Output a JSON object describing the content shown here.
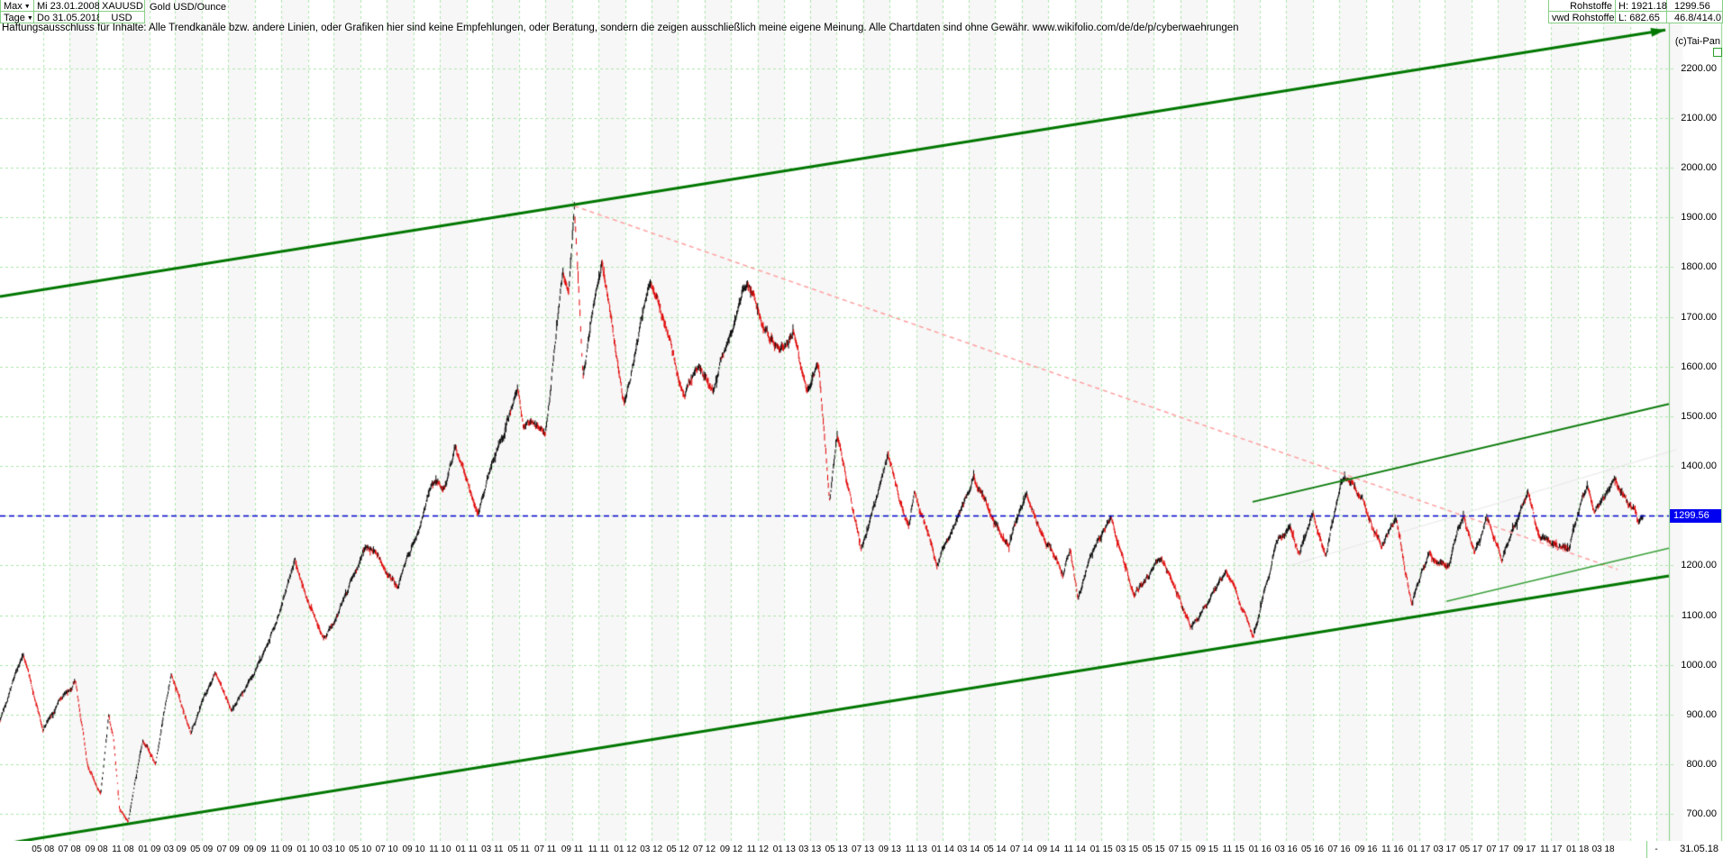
{
  "header": {
    "range_selector_label": "Max",
    "period_selector_label": "Tage",
    "start_date": "Mi 23.01.2008",
    "end_date": "Do 31.05.2018",
    "symbol": "XAUUSD",
    "currency": "USD",
    "instrument_name": "Gold USD/Ounce",
    "category": "Rohstoffe",
    "provider": "vwd Rohstoffe",
    "high_label": "H: 1921.18",
    "low_label": "L: 682.65",
    "last_price": "1299.56",
    "stats": "46.8/414.0",
    "copyright": "(c)Tai-Pan"
  },
  "disclaimer": "Haftungsausschluss für Inhalte: Alle Trendkanäle bzw. andere Linien, oder Grafiken hier sind keine Empfehlungen, oder Beratung, sondern die zeigen ausschließlich meine eigene Meinung. Alle Chartdaten sind ohne Gewähr.  www.wikifolio.com/de/de/p/cyberwaehrungen",
  "current_price": "1299.56",
  "axes": {
    "price_ticks": [
      700,
      800,
      900,
      1000,
      1100,
      1200,
      1300,
      1400,
      1500,
      1600,
      1700,
      1800,
      1900,
      2000,
      2100,
      2200
    ],
    "price_labels_hidden": [
      1300
    ],
    "date_labels": [
      "05 08",
      "07 08",
      "09 08",
      "11 08",
      "01 09",
      "03 09",
      "05 09",
      "07 09",
      "09 09",
      "11 09",
      "01 10",
      "03 10",
      "05 10",
      "07 10",
      "09 10",
      "11 10",
      "01 11",
      "03 11",
      "05 11",
      "07 11",
      "09 11",
      "11 11",
      "01 12",
      "03 12",
      "05 12",
      "07 12",
      "09 12",
      "11 12",
      "01 13",
      "03 13",
      "05 13",
      "07 13",
      "09 13",
      "11 13",
      "01 14",
      "03 14",
      "05 14",
      "07 14",
      "09 14",
      "11 14",
      "01 15",
      "03 15",
      "05 15",
      "07 15",
      "09 15",
      "11 15",
      "01 16",
      "03 16",
      "05 16",
      "07 16",
      "09 16",
      "11 16",
      "01 17",
      "03 17",
      "05 17",
      "07 17",
      "09 17",
      "11 17",
      "01 18",
      "03 18"
    ],
    "end_dash": "-",
    "end_date_label": "31.05.18"
  },
  "chart_data": {
    "type": "candlestick",
    "symbol": "XAUUSD",
    "title": "Gold USD/Ounce",
    "x_range": [
      "2008-01-23",
      "2018-05-31"
    ],
    "y_range": [
      700,
      2200
    ],
    "grid": true,
    "high": 1921.18,
    "low": 682.65,
    "last": 1299.56,
    "colors": {
      "up": "#000000",
      "down": "#e00000",
      "grid": "#ade6ad",
      "band": "#f7f7f7",
      "border": "#86cf86",
      "channel": "#007700",
      "trend": "#0e7d0e",
      "minor_trend": "#39a039",
      "decline": "#ff9f9f",
      "current": "#0000cc",
      "faint": "#e8e8e8",
      "tag_bg": "#0000f0"
    },
    "series": [
      {
        "name": "XAUUSD Gold USD/Ounce",
        "anchors": [
          [
            "2008-01-23",
            890
          ],
          [
            "2008-03-17",
            1028
          ],
          [
            "2008-05-01",
            875
          ],
          [
            "2008-07-15",
            978
          ],
          [
            "2008-08-11",
            818
          ],
          [
            "2008-09-11",
            745
          ],
          [
            "2008-09-29",
            900
          ],
          [
            "2008-10-10",
            850
          ],
          [
            "2008-10-24",
            712
          ],
          [
            "2008-11-13",
            684
          ],
          [
            "2008-12-17",
            855
          ],
          [
            "2009-01-15",
            808
          ],
          [
            "2009-02-20",
            992
          ],
          [
            "2009-04-06",
            872
          ],
          [
            "2009-06-01",
            982
          ],
          [
            "2009-07-08",
            910
          ],
          [
            "2009-09-16",
            1018
          ],
          [
            "2009-10-13",
            1062
          ],
          [
            "2009-12-02",
            1215
          ],
          [
            "2010-02-05",
            1052
          ],
          [
            "2010-03-12",
            1108
          ],
          [
            "2010-05-13",
            1240
          ],
          [
            "2010-07-27",
            1158
          ],
          [
            "2010-10-13",
            1372
          ],
          [
            "2010-11-12",
            1358
          ],
          [
            "2010-12-06",
            1425
          ],
          [
            "2011-01-27",
            1310
          ],
          [
            "2011-04-29",
            1565
          ],
          [
            "2011-05-12",
            1490
          ],
          [
            "2011-07-01",
            1480
          ],
          [
            "2011-08-10",
            1800
          ],
          [
            "2011-08-24",
            1750
          ],
          [
            "2011-09-06",
            1920
          ],
          [
            "2011-09-26",
            1590
          ],
          [
            "2011-11-08",
            1795
          ],
          [
            "2011-12-29",
            1525
          ],
          [
            "2012-02-28",
            1785
          ],
          [
            "2012-05-16",
            1530
          ],
          [
            "2012-06-20",
            1615
          ],
          [
            "2012-07-24",
            1570
          ],
          [
            "2012-10-04",
            1790
          ],
          [
            "2012-12-20",
            1645
          ],
          [
            "2013-01-23",
            1680
          ],
          [
            "2013-02-21",
            1562
          ],
          [
            "2013-03-21",
            1612
          ],
          [
            "2013-04-16",
            1348
          ],
          [
            "2013-05-03",
            1468
          ],
          [
            "2013-06-27",
            1228
          ],
          [
            "2013-08-27",
            1418
          ],
          [
            "2013-10-15",
            1272
          ],
          [
            "2013-10-28",
            1348
          ],
          [
            "2013-12-19",
            1190
          ],
          [
            "2014-03-14",
            1382
          ],
          [
            "2014-06-02",
            1242
          ],
          [
            "2014-07-10",
            1338
          ],
          [
            "2014-10-06",
            1188
          ],
          [
            "2014-10-21",
            1248
          ],
          [
            "2014-11-07",
            1142
          ],
          [
            "2014-12-09",
            1230
          ],
          [
            "2015-01-22",
            1300
          ],
          [
            "2015-03-17",
            1148
          ],
          [
            "2015-05-18",
            1224
          ],
          [
            "2015-07-24",
            1078
          ],
          [
            "2015-10-14",
            1184
          ],
          [
            "2015-12-17",
            1048
          ],
          [
            "2016-02-11",
            1242
          ],
          [
            "2016-03-10",
            1272
          ],
          [
            "2016-04-01",
            1215
          ],
          [
            "2016-05-02",
            1296
          ],
          [
            "2016-05-31",
            1208
          ],
          [
            "2016-07-06",
            1372
          ],
          [
            "2016-08-02",
            1358
          ],
          [
            "2016-10-07",
            1252
          ],
          [
            "2016-11-09",
            1308
          ],
          [
            "2016-12-15",
            1126
          ],
          [
            "2017-01-24",
            1214
          ],
          [
            "2017-03-10",
            1198
          ],
          [
            "2017-04-13",
            1288
          ],
          [
            "2017-05-09",
            1216
          ],
          [
            "2017-06-06",
            1294
          ],
          [
            "2017-07-10",
            1210
          ],
          [
            "2017-09-08",
            1350
          ],
          [
            "2017-10-06",
            1268
          ],
          [
            "2017-12-12",
            1238
          ],
          [
            "2018-01-25",
            1360
          ],
          [
            "2018-02-08",
            1308
          ],
          [
            "2018-03-26",
            1352
          ],
          [
            "2018-05-01",
            1304
          ],
          [
            "2018-05-21",
            1288
          ],
          [
            "2018-05-31",
            1299.56
          ]
        ],
        "tight_anchors": [
          "2008-11-13",
          "2011-09-06",
          "2018-05-31"
        ]
      }
    ],
    "trendlines": [
      {
        "id": "channel-upper",
        "role": "channel",
        "width": 3,
        "dash": null,
        "arrow_end": true,
        "from": {
          "date": "2008-01-23",
          "price": 1741
        },
        "to": {
          "date": "2018-07-22",
          "price": 2277
        }
      },
      {
        "id": "channel-lower",
        "role": "channel",
        "width": 3,
        "dash": null,
        "arrow_end": false,
        "from": {
          "date": "2008-01-23",
          "price": 639
        },
        "to": {
          "date": "2018-07-30",
          "price": 1179
        }
      },
      {
        "id": "rising-resistance",
        "role": "trend",
        "width": 2,
        "dash": null,
        "arrow_end": false,
        "from": {
          "date": "2015-12-15",
          "price": 1328
        },
        "to": {
          "date": "2018-07-30",
          "price": 1525
        }
      },
      {
        "id": "rising-support",
        "role": "minor_trend",
        "width": 1.5,
        "dash": null,
        "arrow_end": false,
        "from": {
          "date": "2017-03-05",
          "price": 1128
        },
        "to": {
          "date": "2018-07-30",
          "price": 1235
        }
      },
      {
        "id": "decline-from-peak",
        "role": "decline",
        "width": 1.5,
        "dash": [
          5,
          4
        ],
        "arrow_end": false,
        "from": {
          "date": "2011-09-06",
          "price": 1923
        },
        "to": {
          "date": "2018-04-03",
          "price": 1192
        }
      },
      {
        "id": "faint-line",
        "role": "faint",
        "width": 1,
        "dash": null,
        "arrow_end": false,
        "from": {
          "date": "2016-03-07",
          "price": 1199
        },
        "to": {
          "date": "2018-08-16",
          "price": 1433
        }
      }
    ],
    "current_price_line": {
      "price": 1299.56,
      "style": "dashed"
    }
  }
}
